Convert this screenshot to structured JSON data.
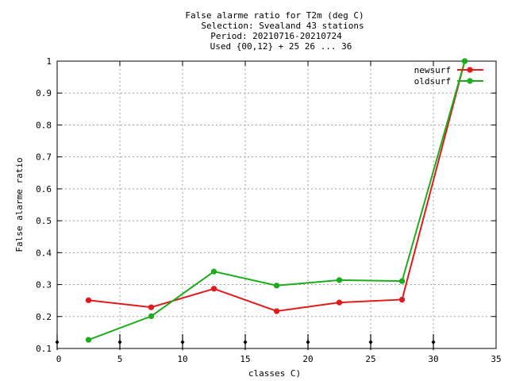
{
  "chart_data": {
    "type": "line",
    "title_lines": [
      "False alarme ratio  for T2m (deg C)",
      "Selection: Svealand     43 stations",
      "Period: 20210716-20210724",
      "Used {00,12} + 25 26 ... 36"
    ],
    "xlabel": "classes C)",
    "ylabel": "False alarme ratio",
    "xlim": [
      0,
      35
    ],
    "ylim": [
      0.1,
      1
    ],
    "xticks": [
      "0",
      "5",
      "10",
      "15",
      "20",
      "25",
      "30",
      "35"
    ],
    "yticks": [
      "0.1",
      "0.2",
      "0.3",
      "0.4",
      "0.5",
      "0.6",
      "0.7",
      "0.8",
      "0.9",
      "1"
    ],
    "grid": true,
    "legend_position": "top-right",
    "class_markers_x": [
      0,
      5,
      10,
      15,
      20,
      25,
      30
    ],
    "series": [
      {
        "name": "newsurf",
        "color": "#e31a1c",
        "x": [
          2.5,
          7.5,
          12.5,
          17.5,
          22.5,
          27.5,
          32.5
        ],
        "y": [
          0.251,
          0.229,
          0.287,
          0.217,
          0.244,
          0.253,
          1.0
        ]
      },
      {
        "name": "oldsurf",
        "color": "#1aae1a",
        "x": [
          2.5,
          7.5,
          12.5,
          17.5,
          22.5,
          27.5,
          32.5
        ],
        "y": [
          0.127,
          0.201,
          0.341,
          0.297,
          0.314,
          0.311,
          1.0
        ]
      }
    ]
  }
}
